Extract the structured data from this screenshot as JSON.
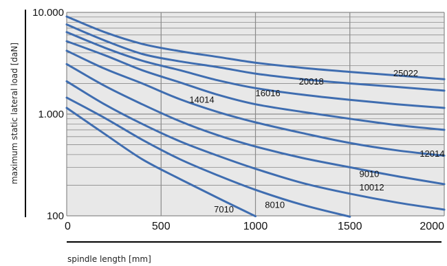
{
  "chart_data": {
    "type": "line",
    "xlabel": "spindle length [mm]",
    "ylabel": "maximum static lateral load [daN]",
    "x_scale": "linear",
    "y_scale": "log",
    "xlim": [
      0,
      2000
    ],
    "ylim": [
      100,
      10000
    ],
    "x_ticks": [
      {
        "value": 0,
        "label": "0"
      },
      {
        "value": 500,
        "label": "500"
      },
      {
        "value": 1000,
        "label": "1000"
      },
      {
        "value": 1500,
        "label": "1500"
      },
      {
        "value": 2000,
        "label": "2000"
      }
    ],
    "y_ticks": [
      {
        "value": 100,
        "label": "100"
      },
      {
        "value": 1000,
        "label": "1.000"
      },
      {
        "value": 10000,
        "label": "10.000"
      }
    ],
    "grid": true,
    "colors": {
      "line": "#3f6db0",
      "plot_bg": "#e8e8e8",
      "grid": "#8a8a8a"
    },
    "series": [
      {
        "name": "25022",
        "x": [
          0,
          200,
          400,
          600,
          800,
          1000,
          1250,
          1500,
          1750,
          2000
        ],
        "y": [
          9100,
          6400,
          4900,
          4150,
          3650,
          3200,
          2850,
          2600,
          2400,
          2200
        ]
      },
      {
        "name": "20018",
        "x": [
          0,
          200,
          400,
          600,
          800,
          1000,
          1250,
          1500,
          1750,
          2000
        ],
        "y": [
          7600,
          5300,
          3900,
          3300,
          2900,
          2500,
          2200,
          2000,
          1850,
          1700
        ]
      },
      {
        "name": "16016",
        "x": [
          0,
          200,
          400,
          600,
          800,
          1000,
          1250,
          1500,
          1750,
          2000
        ],
        "y": [
          6400,
          4500,
          3350,
          2700,
          2150,
          1800,
          1550,
          1380,
          1250,
          1150
        ]
      },
      {
        "name": "14014",
        "x": [
          0,
          200,
          400,
          600,
          800,
          1000,
          1250,
          1500,
          1750,
          2000
        ],
        "y": [
          5200,
          3800,
          2700,
          2050,
          1550,
          1250,
          1050,
          900,
          780,
          700
        ]
      },
      {
        "name": "12014",
        "x": [
          0,
          200,
          400,
          600,
          800,
          1000,
          1250,
          1500,
          1750,
          2000
        ],
        "y": [
          4200,
          2800,
          2000,
          1400,
          1050,
          830,
          650,
          520,
          440,
          390
        ]
      },
      {
        "name": "10012",
        "x": [
          0,
          200,
          400,
          600,
          800,
          1000,
          1250,
          1500,
          1750,
          2000
        ],
        "y": [
          3100,
          1900,
          1250,
          850,
          620,
          480,
          370,
          300,
          245,
          205
        ]
      },
      {
        "name": "9010",
        "x": [
          0,
          200,
          400,
          600,
          800,
          1000,
          1250,
          1500,
          1750,
          2000
        ],
        "y": [
          2100,
          1250,
          800,
          540,
          390,
          290,
          210,
          165,
          135,
          115
        ]
      },
      {
        "name": "8010",
        "x": [
          0,
          200,
          400,
          600,
          800,
          1000,
          1250,
          1500
        ],
        "y": [
          1450,
          920,
          560,
          360,
          250,
          180,
          128,
          98
        ]
      },
      {
        "name": "7010",
        "x": [
          0,
          200,
          400,
          600,
          800,
          1000
        ],
        "y": [
          1150,
          640,
          360,
          230,
          150,
          99
        ]
      }
    ],
    "annotations": [
      {
        "series": "25022",
        "text": "25022",
        "x": 1730,
        "y": 2350
      },
      {
        "series": "20018",
        "text": "20018",
        "x": 1230,
        "y": 1950
      },
      {
        "series": "16016",
        "text": "16016",
        "x": 1000,
        "y": 1500
      },
      {
        "series": "14014",
        "text": "14014",
        "x": 650,
        "y": 1290
      },
      {
        "series": "12014",
        "text": "12014",
        "x": 1870,
        "y": 380
      },
      {
        "series": "9010",
        "text": "9010",
        "x": 1550,
        "y": 240
      },
      {
        "series": "10012",
        "text": "10012",
        "x": 1550,
        "y": 178
      },
      {
        "series": "8010",
        "text": "8010",
        "x": 1050,
        "y": 120
      },
      {
        "series": "7010",
        "text": "7010",
        "x": 780,
        "y": 108
      }
    ]
  }
}
